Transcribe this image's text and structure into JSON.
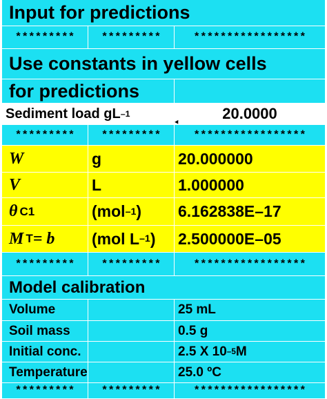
{
  "colors": {
    "cyan": "#1ce0f2",
    "yellow": "#ffff00",
    "white": "#ffffff",
    "border": "#ffffff"
  },
  "header": {
    "title": "Input for predictions"
  },
  "separator": {
    "short": "*********",
    "long": "*****************"
  },
  "instructions": {
    "line1": "Use constants in yellow cells",
    "line2": "for predictions"
  },
  "sediment": {
    "label": "Sediment load gL",
    "label_sup": "–1",
    "value": "20.0000"
  },
  "constants": [
    {
      "symbol": "W",
      "unit": "g",
      "value": "20.000000"
    },
    {
      "symbol": "V",
      "unit": "L",
      "value": "1.000000"
    },
    {
      "symbol": "θ",
      "symbol_sub": "C1",
      "unit": "(mol ",
      "unit_sup": "–1",
      "unit_end": ")",
      "value": "6.162838E–17"
    },
    {
      "symbol": "M",
      "symbol_sub": "T",
      "symbol_end": " = b",
      "unit": "(mol L",
      "unit_sup": "–1",
      "unit_end": ")",
      "value": "2.500000E–05"
    }
  ],
  "calibration": {
    "title": "Model calibration",
    "rows": [
      {
        "label": "Volume",
        "value": "25 mL"
      },
      {
        "label": "Soil mass",
        "value": "0.5 g"
      },
      {
        "label": "Initial conc.",
        "value": "2.5 X 10",
        "value_sup": "–5",
        "value_end": " M"
      },
      {
        "label": "Temperature",
        "value": "25.0 ºC"
      }
    ]
  }
}
